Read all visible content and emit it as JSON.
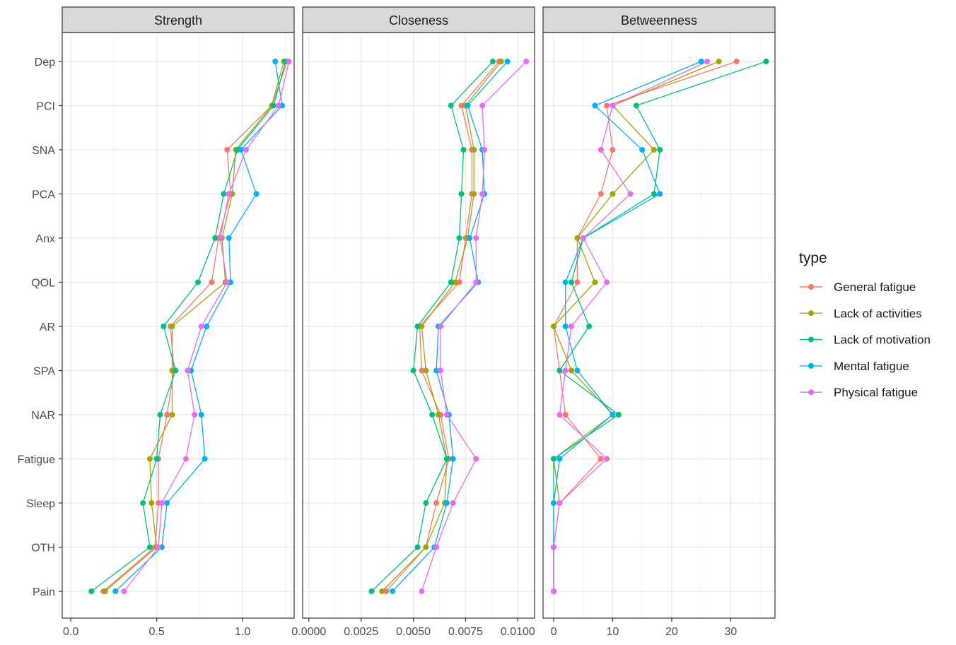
{
  "chart_data": {
    "type": "line",
    "panels": [
      {
        "name": "Strength",
        "xlim": [
          -0.05,
          1.3
        ],
        "xticks": [
          0,
          0.5,
          1
        ],
        "xtick_labels": [
          "0.0",
          "0.5",
          "1.0"
        ]
      },
      {
        "name": "Closeness",
        "xlim": [
          -0.0003,
          0.0108
        ],
        "xticks": [
          0,
          0.0025,
          0.005,
          0.0075,
          0.01
        ],
        "xtick_labels": [
          "0.0000",
          "0.0025",
          "0.0050",
          "0.0075",
          "0.0100"
        ]
      },
      {
        "name": "Betweenness",
        "xlim": [
          -1.8,
          37.5
        ],
        "xticks": [
          0,
          10,
          20,
          30
        ],
        "xtick_labels": [
          "0",
          "10",
          "20",
          "30"
        ]
      }
    ],
    "categories": [
      "Dep",
      "PCI",
      "SNA",
      "PCA",
      "Anx",
      "QOL",
      "AR",
      "SPA",
      "NAR",
      "Fatigue",
      "Sleep",
      "OTH",
      "Pain"
    ],
    "legend": {
      "title": "type",
      "position": "right"
    },
    "grid": true,
    "series": [
      {
        "name": "General fatigue",
        "color": "#F8766D",
        "Strength": [
          1.26,
          1.17,
          0.91,
          0.93,
          0.86,
          0.82,
          0.58,
          0.6,
          0.56,
          0.51,
          0.51,
          0.49,
          0.19
        ],
        "Closeness": [
          0.0091,
          0.0073,
          0.0078,
          0.0078,
          0.0075,
          0.0072,
          0.0053,
          0.0054,
          0.0063,
          0.0067,
          0.0061,
          0.0056,
          0.0037
        ],
        "Betweenness": [
          31,
          9,
          10,
          8,
          4,
          4,
          0,
          1,
          2,
          8,
          1,
          0,
          0
        ]
      },
      {
        "name": "Lack of activities",
        "color": "#A3A500",
        "Strength": [
          1.24,
          1.17,
          0.96,
          0.94,
          0.88,
          0.9,
          0.59,
          0.59,
          0.59,
          0.46,
          0.47,
          0.5,
          0.2
        ],
        "Closeness": [
          0.0092,
          0.0075,
          0.0079,
          0.0079,
          0.0076,
          0.007,
          0.0054,
          0.0056,
          0.0062,
          0.0066,
          0.0065,
          0.0056,
          0.0035
        ],
        "Betweenness": [
          28,
          10,
          17,
          10,
          4,
          7,
          0,
          3,
          10,
          0,
          1,
          0,
          0
        ]
      },
      {
        "name": "Lack of motivation",
        "color": "#00BF7D",
        "Strength": [
          1.25,
          1.18,
          0.97,
          0.89,
          0.84,
          0.74,
          0.54,
          0.61,
          0.52,
          0.5,
          0.42,
          0.46,
          0.12
        ],
        "Closeness": [
          0.0088,
          0.0068,
          0.0074,
          0.0073,
          0.0072,
          0.0068,
          0.0052,
          0.005,
          0.0059,
          0.0066,
          0.0056,
          0.0052,
          0.003
        ],
        "Betweenness": [
          36,
          14,
          18,
          17,
          5,
          3,
          6,
          1,
          11,
          0,
          0,
          0,
          0
        ]
      },
      {
        "name": "Mental fatigue",
        "color": "#00B0F6",
        "Strength": [
          1.19,
          1.23,
          0.99,
          1.08,
          0.92,
          0.93,
          0.79,
          0.7,
          0.76,
          0.78,
          0.56,
          0.53,
          0.26
        ],
        "Closeness": [
          0.0095,
          0.0076,
          0.0083,
          0.0084,
          0.0077,
          0.0081,
          0.0062,
          0.0061,
          0.0067,
          0.0069,
          0.0066,
          0.006,
          0.004
        ],
        "Betweenness": [
          25,
          7,
          15,
          18,
          5,
          2,
          2,
          4,
          10,
          1,
          0,
          0,
          0
        ]
      },
      {
        "name": "Physical fatigue",
        "color": "#E76BF3",
        "Strength": [
          1.27,
          1.21,
          1.02,
          0.92,
          0.87,
          0.91,
          0.76,
          0.68,
          0.72,
          0.67,
          0.53,
          0.51,
          0.31
        ],
        "Closeness": [
          0.0104,
          0.0083,
          0.0084,
          0.0083,
          0.008,
          0.008,
          0.0063,
          0.0063,
          0.0066,
          0.008,
          0.0069,
          0.0061,
          0.0054
        ],
        "Betweenness": [
          26,
          10,
          8,
          13,
          5,
          9,
          3,
          2,
          1,
          9,
          1,
          0,
          0
        ]
      }
    ]
  }
}
